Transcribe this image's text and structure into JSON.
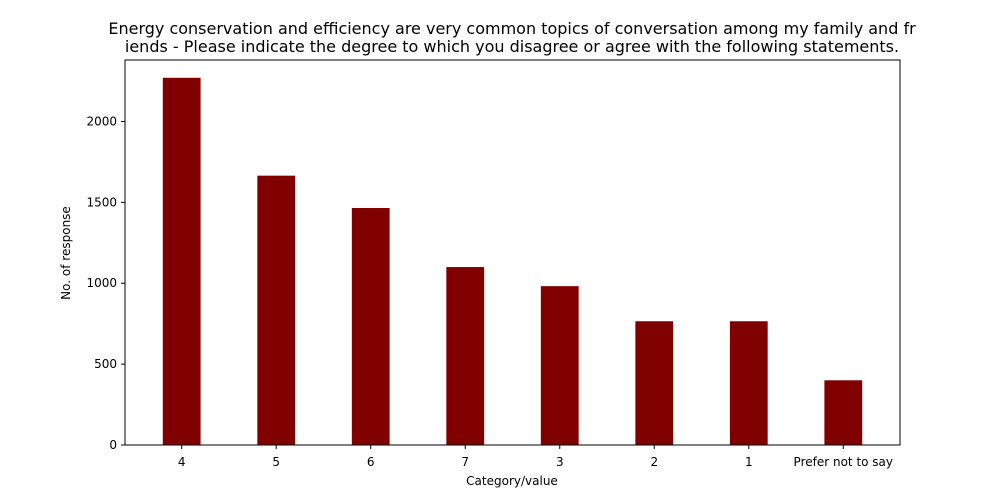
{
  "chart_data": {
    "type": "bar",
    "title_lines": [
      "Energy conservation and efficiency are very common topics of conversation among my family and fr",
      "iends - Please indicate the degree to which you disagree or agree with the following statements."
    ],
    "xlabel": "Category/value",
    "ylabel": "No. of response",
    "categories": [
      "4",
      "5",
      "6",
      "7",
      "3",
      "2",
      "1",
      "Prefer not to say"
    ],
    "values": [
      2270,
      1665,
      1465,
      1100,
      982,
      765,
      765,
      400
    ],
    "ylim": [
      0,
      2380
    ],
    "yticks": [
      0,
      500,
      1000,
      1500,
      2000
    ],
    "bar_color": "#800000",
    "grid": false,
    "legend": "none"
  }
}
